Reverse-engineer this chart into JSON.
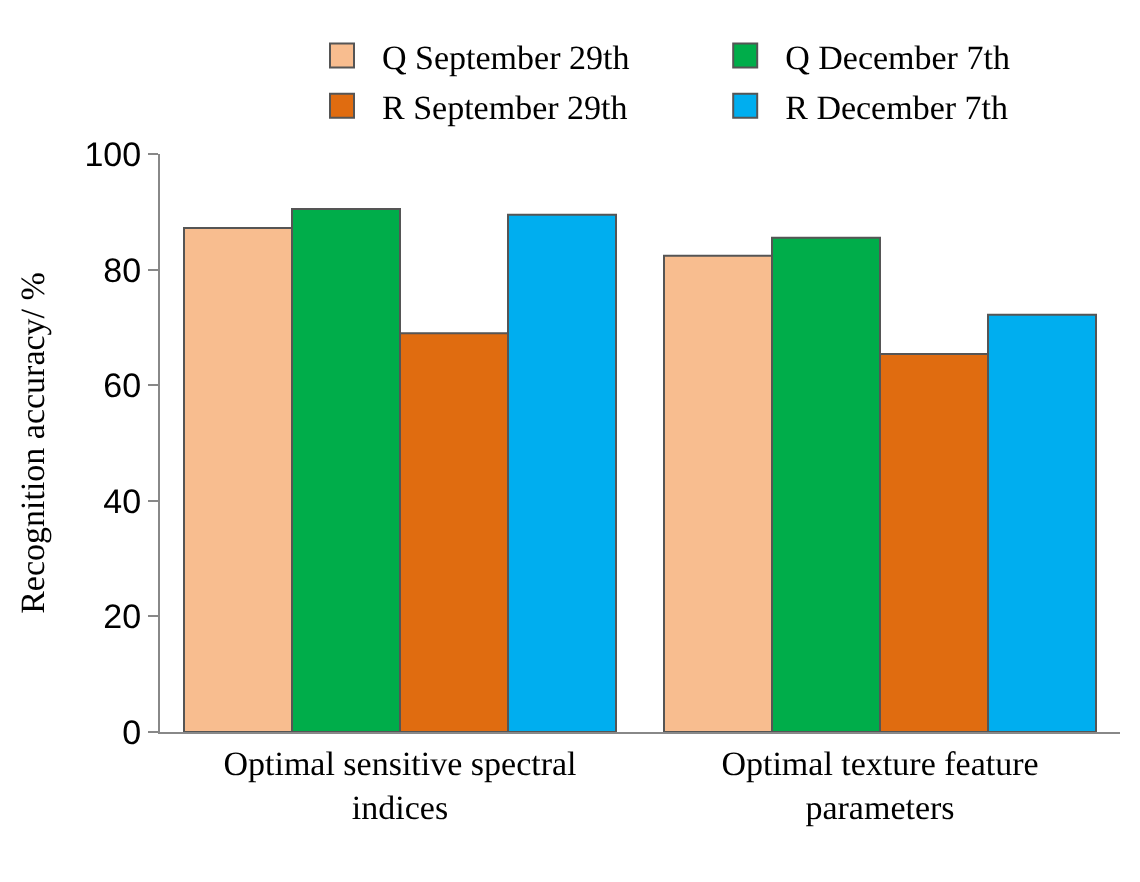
{
  "chart_data": {
    "type": "bar",
    "ylabel": "Recognition accuracy/ %",
    "categories": [
      "Optimal sensitive spectral indices",
      "Optimal texture feature parameters"
    ],
    "series": [
      {
        "name": "Q September 29th",
        "color": "#f8bd8f",
        "values": [
          87.2,
          82.4
        ]
      },
      {
        "name": "Q December 7th",
        "color": "#00ad4a",
        "values": [
          90.5,
          85.5
        ]
      },
      {
        "name": "R September 29th",
        "color": "#e06c10",
        "values": [
          69.0,
          65.4
        ]
      },
      {
        "name": "R December 7th",
        "color": "#00aeef",
        "values": [
          89.5,
          72.2
        ]
      }
    ],
    "ylim": [
      0,
      100
    ],
    "yticks": [
      0,
      20,
      40,
      60,
      80,
      100
    ],
    "legend": "top right"
  }
}
